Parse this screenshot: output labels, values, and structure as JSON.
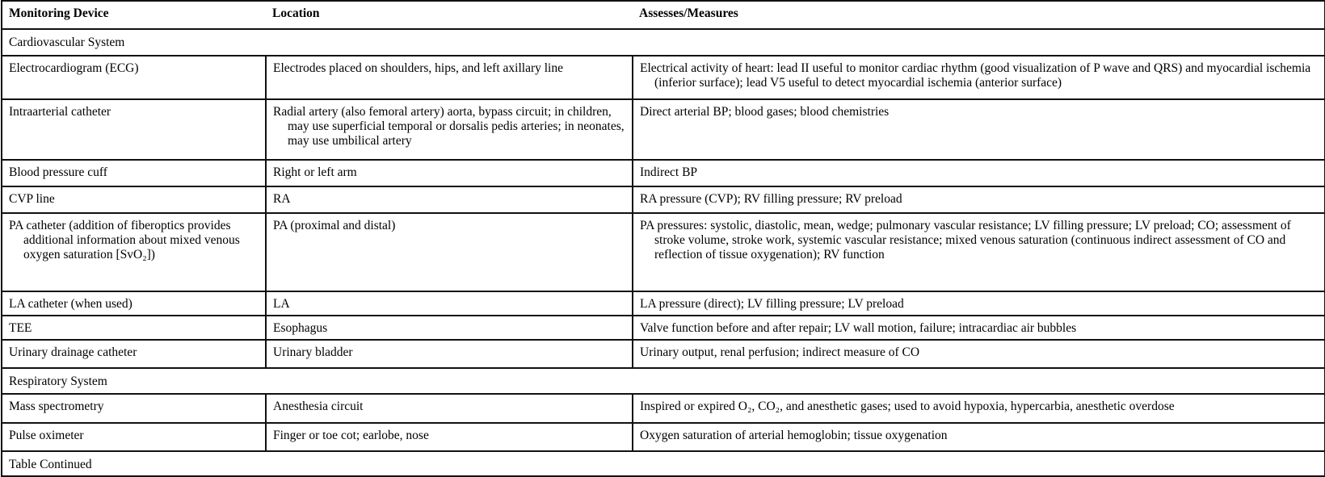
{
  "headers": [
    "Monitoring Device",
    "Location",
    "Assesses/Measures"
  ],
  "rows": [
    {
      "section": "Cardiovascular System"
    },
    {
      "cells": [
        "Electrocardiogram (ECG)",
        "Electrodes placed on shoulders, hips, and left axillary line",
        "Electrical activity of heart: lead II useful to monitor cardiac rhythm (good visualization of P wave and QRS) and myocardial ischemia (inferior surface); lead V5 useful to detect myocardial ischemia (anterior surface)"
      ]
    },
    {
      "cells": [
        "Intraarterial catheter",
        "Radial artery (also femoral artery) aorta, bypass circuit; in children, may use superficial temporal or dorsalis pedis arteries; in neonates, may use umbilical artery",
        "Direct arterial BP; blood gases; blood chemistries"
      ]
    },
    {
      "cells": [
        "Blood pressure cuff",
        "Right or left arm",
        "Indirect BP"
      ]
    },
    {
      "cells": [
        "CVP line",
        "RA",
        "RA pressure (CVP); RV filling pressure; RV preload"
      ]
    },
    {
      "cells": [
        "PA catheter (addition of fiberoptics provides additional information about mixed venous oxygen saturation [SvO₂])",
        "PA (proximal and distal)",
        "PA pressures: systolic, diastolic, mean, wedge; pulmonary vascular resistance; LV filling pressure; LV preload; CO; assessment of stroke volume, stroke work, systemic vascular resistance; mixed venous saturation (continuous indirect assessment of CO and reflection of tissue oxygenation); RV function"
      ]
    },
    {
      "cells": [
        "LA catheter (when used)",
        "LA",
        "LA pressure (direct); LV filling pressure; LV preload"
      ]
    },
    {
      "cells": [
        "TEE",
        "Esophagus",
        "Valve function before and after repair; LV wall motion, failure; intracardiac air bubbles"
      ]
    },
    {
      "cells": [
        "Urinary drainage catheter",
        "Urinary bladder",
        "Urinary output, renal perfusion; indirect measure of CO"
      ]
    },
    {
      "section": "Respiratory System"
    },
    {
      "cells": [
        "Mass spectrometry",
        "Anesthesia circuit",
        "Inspired or expired O₂, CO₂, and anesthetic gases; used to avoid hypoxia, hypercarbia, anesthetic overdose"
      ]
    },
    {
      "cells": [
        "Pulse oximeter",
        "Finger or toe cot; earlobe, nose",
        "Oxygen saturation of arterial hemoglobin; tissue oxygenation"
      ]
    },
    {
      "section": "Table Continued"
    }
  ]
}
